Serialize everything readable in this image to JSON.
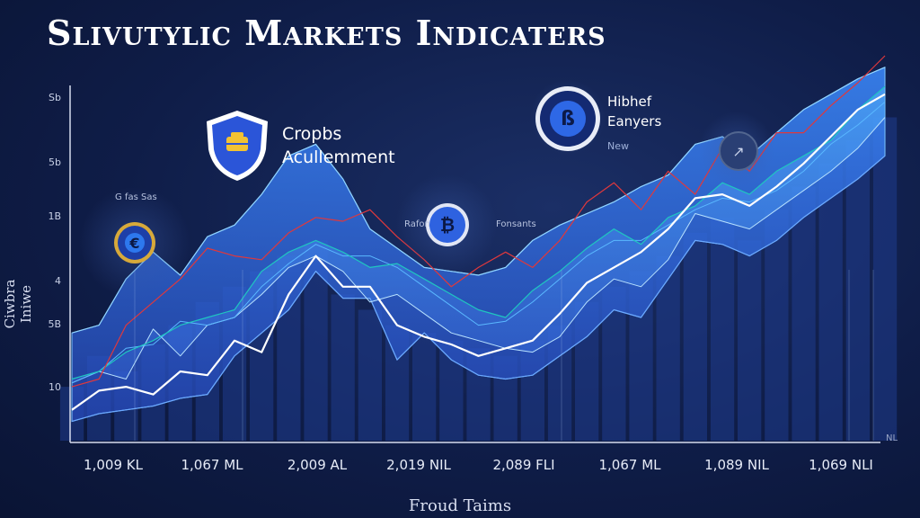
{
  "chart_data": {
    "type": "area",
    "title": "Slivutylic Markets Indicaters",
    "xlabel": "Froud Taims",
    "ylabel": "Ciwbra Iniwe",
    "y_ticks": [
      "Sb",
      "5b",
      "1B",
      "4",
      "5B",
      "10"
    ],
    "x_ticks": [
      "1,009 KL",
      "1,067 ML",
      "2,009 AL",
      "2,019 NIL",
      "2,089 FLI",
      "1,067 ML",
      "1,089 NIL",
      "1,069 NLI"
    ],
    "corner_tick": "NL",
    "ylim": [
      0,
      100
    ],
    "x": [
      0,
      1,
      2,
      3,
      4,
      5,
      6,
      7,
      8,
      9,
      10,
      11,
      12,
      13,
      14,
      15,
      16,
      17,
      18,
      19,
      20,
      21,
      22,
      23,
      24,
      25,
      26,
      27,
      28,
      29,
      30
    ],
    "series": [
      {
        "values": [
          8,
          13,
          14,
          12,
          18,
          17,
          26,
          23,
          38,
          48,
          40,
          40,
          30,
          27,
          25,
          22,
          24,
          26,
          33,
          41,
          45,
          49,
          55,
          63,
          64,
          61,
          66,
          72,
          79,
          86,
          90
        ]
      },
      {
        "values": [
          28,
          30,
          42,
          49,
          43,
          53,
          56,
          64,
          74,
          77,
          68,
          55,
          50,
          45,
          44,
          43,
          45,
          52,
          56,
          59,
          62,
          66,
          69,
          77,
          79,
          74,
          80,
          86,
          90,
          94,
          97
        ]
      },
      {
        "values": [
          5,
          7,
          8,
          9,
          11,
          12,
          22,
          28,
          34,
          44,
          37,
          37,
          21,
          28,
          21,
          17,
          16,
          17,
          22,
          27,
          34,
          32,
          42,
          52,
          51,
          48,
          52,
          58,
          63,
          68,
          74
        ]
      },
      {
        "values": [
          15,
          18,
          16,
          29,
          22,
          30,
          32,
          38,
          45,
          48,
          44,
          36,
          38,
          33,
          28,
          26,
          24,
          23,
          27,
          36,
          42,
          40,
          47,
          59,
          57,
          55,
          60,
          65,
          70,
          76,
          84
        ]
      },
      {
        "values": [
          14,
          16,
          30,
          36,
          42,
          50,
          48,
          47,
          54,
          58,
          57,
          60,
          53,
          47,
          40,
          45,
          49,
          45,
          52,
          62,
          67,
          60,
          70,
          64,
          76,
          70,
          80,
          80,
          87,
          93,
          100
        ]
      },
      {
        "values": [
          16,
          18,
          23,
          26,
          30,
          32,
          34,
          44,
          49,
          52,
          49,
          45,
          46,
          42,
          38,
          34,
          32,
          39,
          44,
          50,
          55,
          51,
          58,
          61,
          67,
          64,
          70,
          74,
          78,
          86,
          92
        ]
      },
      {
        "values": [
          15,
          18,
          24,
          25,
          31,
          30,
          32,
          40,
          46,
          51,
          48,
          48,
          45,
          40,
          35,
          30,
          31,
          36,
          42,
          48,
          52,
          52,
          56,
          60,
          63,
          62,
          65,
          70,
          77,
          82,
          88
        ]
      }
    ],
    "background_bars": [
      14,
      22,
      18,
      25,
      30,
      36,
      40,
      44,
      48,
      52,
      38,
      34,
      30,
      28,
      26,
      24,
      22,
      26,
      30,
      36,
      40,
      44,
      48,
      54,
      58,
      52,
      60,
      66,
      72,
      78,
      84
    ]
  },
  "annotations": {
    "shield": {
      "line1": "Cropbs",
      "line2": "Acullemment"
    },
    "top": {
      "line1": "Hibhef",
      "line2": "Eanyers",
      "sub": "New"
    },
    "left_small": "G fas Sas",
    "mid_left": "Rafon",
    "mid_right": "Fonsants"
  },
  "colors": {
    "background": "#0f1d48",
    "area_fill": "#2f6fe0",
    "line_white": "#ffffff",
    "line_red": "#e0383c",
    "line_teal": "#1fc6c0",
    "line_blue": "#5ab8ff",
    "accent_gold": "#f2c233"
  },
  "icons": [
    "shield-coin-icon",
    "euro-coin-icon",
    "bitcoin-coin-icon",
    "crypto-coin-icon",
    "trend-arrow-icon"
  ]
}
